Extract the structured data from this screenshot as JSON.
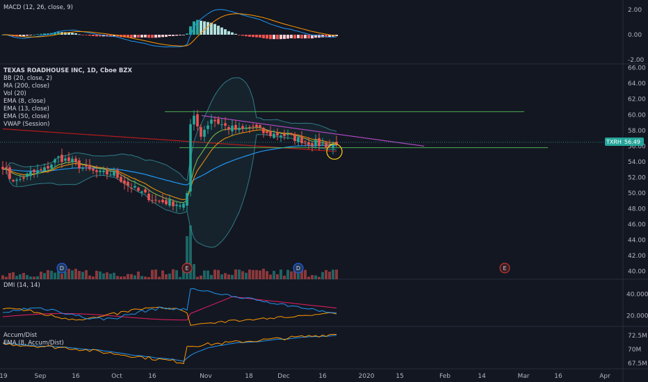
{
  "chart_data": {
    "type": "candlestick",
    "title": "TEXAS ROADHOUSE INC, 1D, Cboe BZX",
    "symbol": "TXRH",
    "last_price": "56.49",
    "colors": {
      "background": "#131722",
      "up": "#26a69a",
      "down": "#ef5350",
      "bb": "#2f7d86",
      "ma200": "#b71c1c",
      "ema8": "#8bc34a",
      "ema13": "#ff9800",
      "ema50": "#2196f3",
      "trend_green": "#4caf50",
      "trend_purple": "#ab47bc",
      "price_label": "#26a69a",
      "di_plus": "#2196f3",
      "di_minus": "#ff9800",
      "adx": "#e91e63"
    },
    "legends": {
      "macd": "MACD (12, 26, close, 9)",
      "bb": "BB (20, close, 2)",
      "ma": "MA (200, close)",
      "vol": "Vol (20)",
      "ema8": "EMA (8, close)",
      "ema13": "EMA (13, close)",
      "ema50": "EMA (50, close)",
      "vwap": "VWAP (Session)",
      "dmi": "DMI (14, 14)",
      "ad": "Accum/Dist",
      "ad_ema": "EMA (8, Accum/Dist)"
    },
    "main_axis": [
      "66.00",
      "64.00",
      "62.00",
      "60.00",
      "58.00",
      "56.00",
      "54.00",
      "52.00",
      "50.00",
      "48.00",
      "46.00",
      "44.00",
      "42.00",
      "40.00"
    ],
    "main_ylim": [
      39,
      66.5
    ],
    "macd_axis": [
      "2.00",
      "0.00",
      "-2.00"
    ],
    "dmi_axis": [
      "40.0000",
      "20.0000"
    ],
    "ad_axis": [
      "72.5M",
      "70M",
      "67.5M"
    ],
    "x_ticks": [
      "19",
      "Sep",
      "16",
      "Oct",
      "16",
      "Nov",
      "18",
      "Dec",
      "16",
      "2020",
      "15",
      "Feb",
      "14",
      "Mar",
      "16",
      "Apr"
    ],
    "close_anchors": [
      [
        0,
        53.5
      ],
      [
        2,
        52.0
      ],
      [
        4,
        51.5
      ],
      [
        8,
        52.5
      ],
      [
        12,
        53.0
      ],
      [
        16,
        54.5
      ],
      [
        20,
        54.0
      ],
      [
        24,
        53.0
      ],
      [
        28,
        52.5
      ],
      [
        32,
        52.5
      ],
      [
        36,
        51.0
      ],
      [
        40,
        50.0
      ],
      [
        44,
        49.0
      ],
      [
        48,
        48.8
      ],
      [
        52,
        48.5
      ],
      [
        53,
        50.0
      ],
      [
        54,
        58.8
      ],
      [
        55,
        59.5
      ],
      [
        57,
        57.5
      ],
      [
        60,
        59.5
      ],
      [
        64,
        58.5
      ],
      [
        68,
        58.0
      ],
      [
        72,
        58.5
      ],
      [
        76,
        57.5
      ],
      [
        80,
        57.5
      ],
      [
        84,
        57.0
      ],
      [
        88,
        56.5
      ],
      [
        92,
        56.2
      ],
      [
        94,
        56.0
      ],
      [
        96,
        56.5
      ]
    ],
    "markers": [
      {
        "label": "D",
        "kind": "dividend",
        "index": 17
      },
      {
        "label": "E",
        "kind": "earnings",
        "index": 53
      },
      {
        "label": "D",
        "kind": "dividend",
        "index": 85
      },
      {
        "label": "E",
        "kind": "earnings",
        "future_x": 726
      }
    ]
  }
}
